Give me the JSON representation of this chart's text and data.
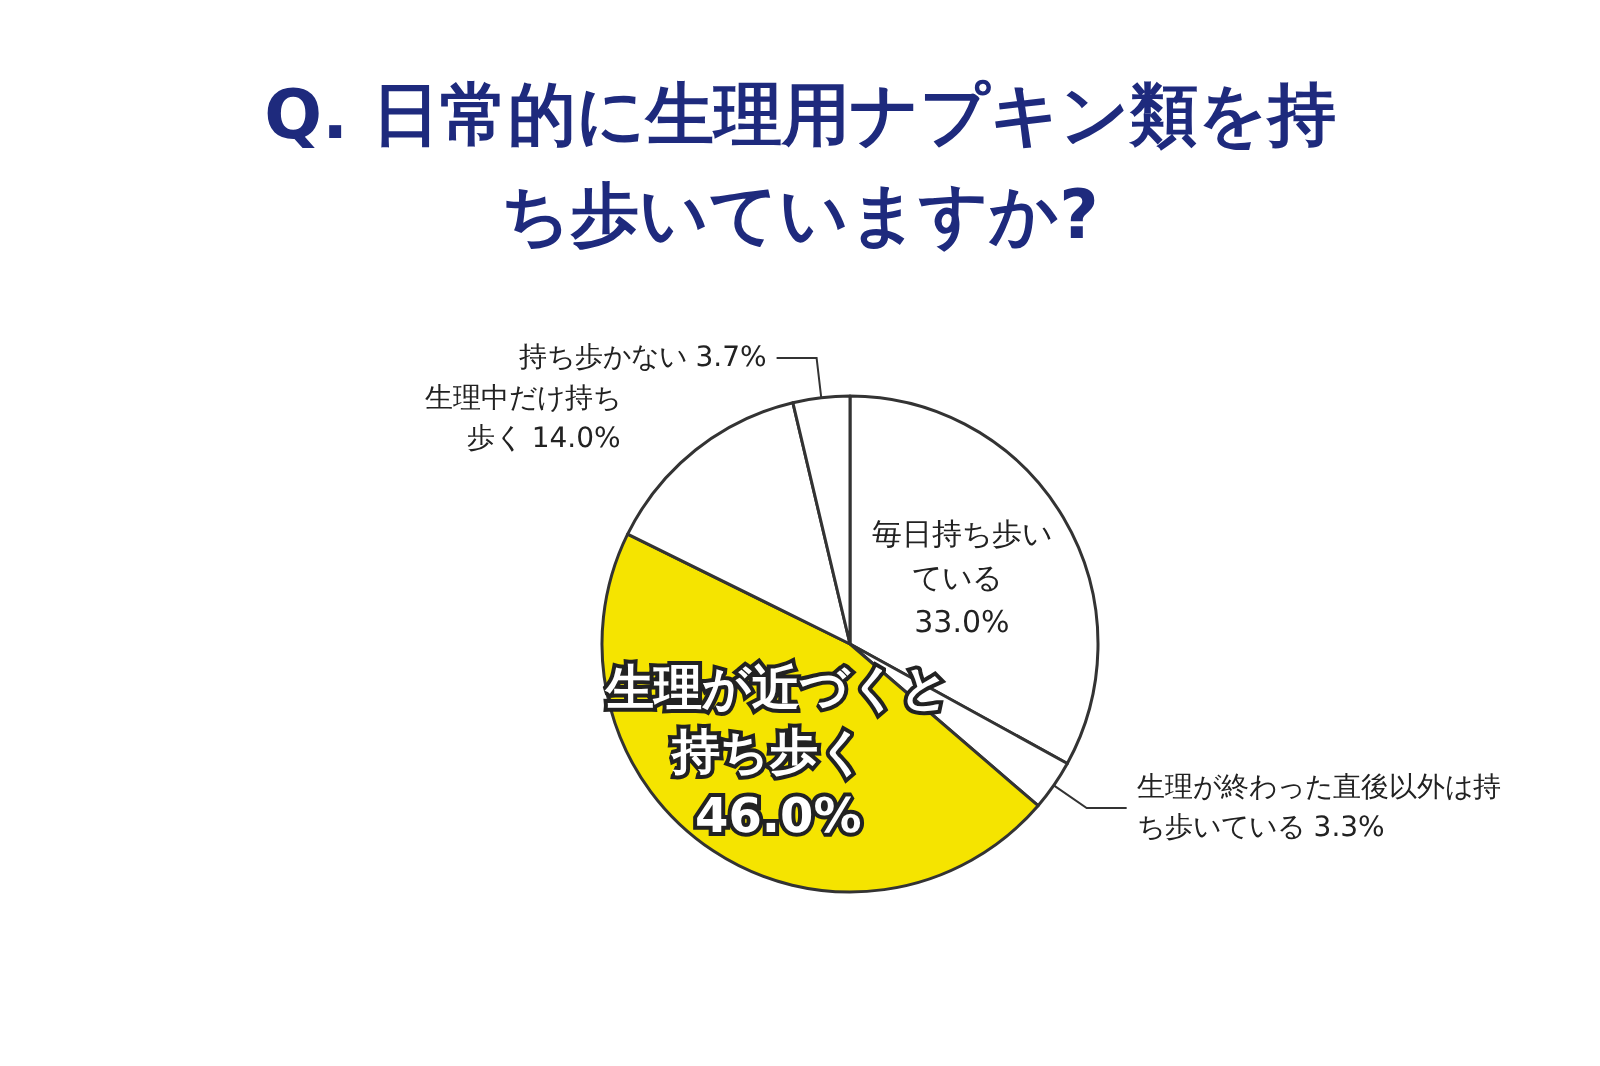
{
  "chart_data": {
    "type": "pie",
    "title": "Q. 日常的に生理用ナプキン類を持ち歩いていますか?",
    "categories": [
      "毎日持ち歩いている",
      "生理が終わった直後以外は持ち歩いている",
      "生理が近づくと持ち歩く",
      "生理中だけ持ち歩く",
      "持ち歩かない"
    ],
    "values": [
      33.0,
      3.3,
      46.0,
      14.0,
      3.7
    ],
    "value_labels": [
      "33.0%",
      "3.3%",
      "46.0%",
      "14.0%",
      "3.7%"
    ],
    "colors": [
      "#ffffff",
      "#ffffff",
      "#f5e400",
      "#ffffff",
      "#ffffff"
    ],
    "legend": false
  }
}
